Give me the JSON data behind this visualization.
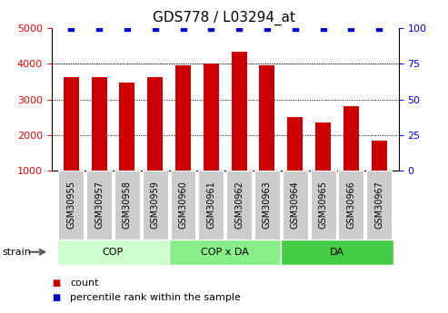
{
  "title": "GDS778 / L03294_at",
  "categories": [
    "GSM30955",
    "GSM30957",
    "GSM30958",
    "GSM30959",
    "GSM30960",
    "GSM30961",
    "GSM30962",
    "GSM30963",
    "GSM30964",
    "GSM30965",
    "GSM30966",
    "GSM30967"
  ],
  "counts": [
    3620,
    3620,
    3470,
    3620,
    3960,
    4010,
    4330,
    3950,
    2510,
    2360,
    2820,
    1840
  ],
  "percentile": [
    100,
    100,
    100,
    100,
    100,
    100,
    100,
    100,
    100,
    100,
    100,
    100
  ],
  "bar_color": "#cc0000",
  "dot_color": "#0000cc",
  "ylim_left": [
    1000,
    5000
  ],
  "ylim_right": [
    0,
    100
  ],
  "yticks_left": [
    1000,
    2000,
    3000,
    4000,
    5000
  ],
  "yticks_right": [
    0,
    25,
    50,
    75,
    100
  ],
  "groups": [
    {
      "label": "COP",
      "start": 0,
      "end": 4,
      "color": "#ccffcc"
    },
    {
      "label": "COP x DA",
      "start": 4,
      "end": 8,
      "color": "#88ee88"
    },
    {
      "label": "DA",
      "start": 8,
      "end": 12,
      "color": "#44cc44"
    }
  ],
  "xlabel_strain": "strain",
  "legend_count_color": "#cc0000",
  "legend_pct_color": "#0000cc",
  "bg_color": "#ffffff",
  "tick_bg_color": "#cccccc",
  "title_fontsize": 11,
  "axis_fontsize": 8,
  "tick_fontsize": 7,
  "legend_fontsize": 8
}
